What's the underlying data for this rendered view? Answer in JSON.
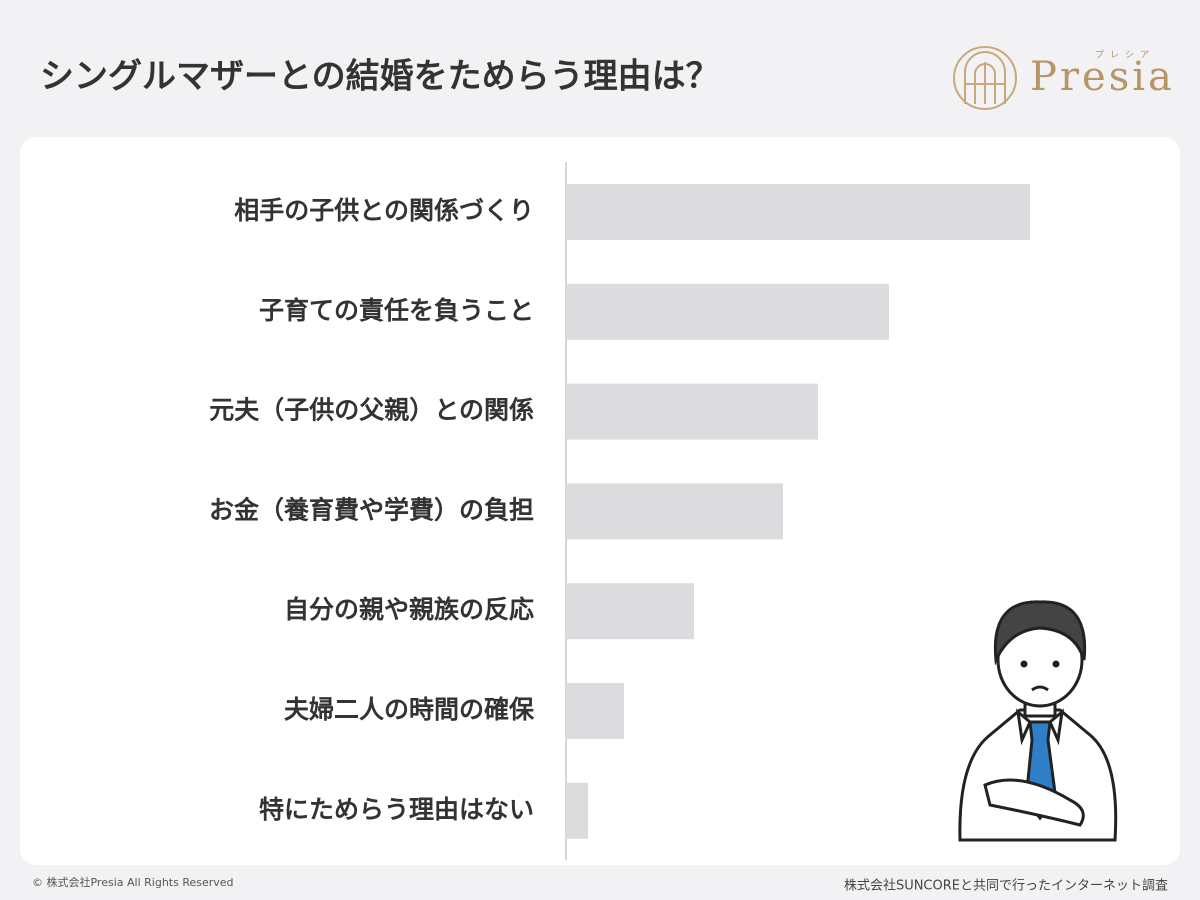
{
  "chart_data": {
    "type": "hbar",
    "title": "シングルマザーとの結婚をためらう理由は？",
    "categories": [
      "相手の子供との関係づくり",
      "子育ての責任を負うこと",
      "元夫（子供の父親）との関係",
      "お金（養育費や学費）の負担",
      "自分の親や親族の反応",
      "夫婦二人の時間の確保",
      "特にためらう理由はない"
    ],
    "values": [
      46.4,
      32.3,
      25.2,
      21.7,
      12.8,
      5.8,
      2.2
    ],
    "color": "#dcdbde"
  },
  "logo": {
    "name": "Presia",
    "reading": "プレシア"
  },
  "footer": {
    "copyright": "© 株式会社Presia All Rights Reserved",
    "source": "株式会社SUNCOREと共同で行ったインターネット調査"
  }
}
